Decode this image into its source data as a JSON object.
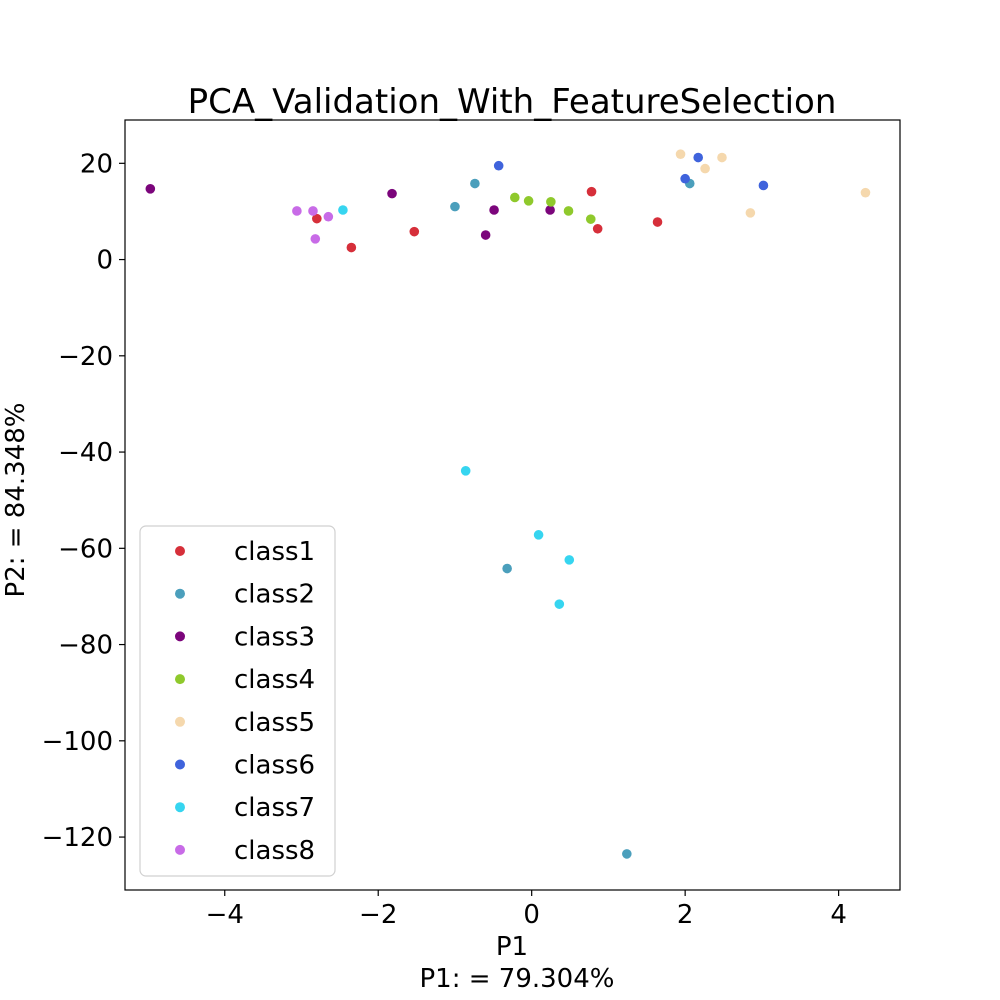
{
  "chart_data": {
    "type": "scatter",
    "title": "PCA_Validation_With_FeatureSelection",
    "xlabel": "P1",
    "xsublabel": "P1: = 79.304%",
    "ylabel": "P2: = 84.348%",
    "xlim": [
      -5.3,
      4.8
    ],
    "ylim": [
      -131,
      29
    ],
    "xticks": [
      -4,
      -2,
      0,
      2,
      4
    ],
    "xtick_labels": [
      "−4",
      "−2",
      "0",
      "2",
      "4"
    ],
    "yticks": [
      20,
      0,
      -20,
      -40,
      -60,
      -80,
      -100,
      -120
    ],
    "ytick_labels": [
      "20",
      "0",
      "−20",
      "−40",
      "−60",
      "−80",
      "−100",
      "−120"
    ],
    "grid": false,
    "legend_position": "lower-left",
    "series": [
      {
        "name": "class1",
        "color": "#d62f3a",
        "points": [
          [
            -2.8,
            8.5
          ],
          [
            -2.35,
            2.5
          ],
          [
            -1.53,
            5.8
          ],
          [
            0.78,
            14.1
          ],
          [
            0.86,
            6.4
          ],
          [
            1.64,
            7.8
          ]
        ]
      },
      {
        "name": "class2",
        "color": "#4b9fbc",
        "points": [
          [
            -1.0,
            11.0
          ],
          [
            -0.74,
            15.8
          ],
          [
            -0.32,
            -64.2
          ],
          [
            1.24,
            -123.5
          ],
          [
            2.06,
            15.8
          ]
        ]
      },
      {
        "name": "class3",
        "color": "#7b057b",
        "points": [
          [
            -4.97,
            14.7
          ],
          [
            -1.82,
            13.7
          ],
          [
            -0.6,
            5.1
          ],
          [
            -0.49,
            10.3
          ],
          [
            0.24,
            10.3
          ]
        ]
      },
      {
        "name": "class4",
        "color": "#8fc92c",
        "points": [
          [
            -0.22,
            12.9
          ],
          [
            -0.04,
            12.2
          ],
          [
            0.25,
            12.0
          ],
          [
            0.48,
            10.1
          ],
          [
            0.77,
            8.4
          ]
        ]
      },
      {
        "name": "class5",
        "color": "#f5d8ad",
        "points": [
          [
            1.94,
            21.9
          ],
          [
            2.26,
            18.9
          ],
          [
            2.48,
            21.2
          ],
          [
            2.85,
            9.7
          ],
          [
            4.35,
            13.9
          ]
        ]
      },
      {
        "name": "class6",
        "color": "#3f63dc",
        "points": [
          [
            -0.43,
            19.5
          ],
          [
            2.0,
            16.8
          ],
          [
            2.17,
            21.2
          ],
          [
            3.02,
            15.4
          ]
        ]
      },
      {
        "name": "class7",
        "color": "#36d5f0",
        "points": [
          [
            -2.46,
            10.3
          ],
          [
            -0.86,
            -43.9
          ],
          [
            0.09,
            -57.2
          ],
          [
            0.49,
            -62.4
          ],
          [
            0.36,
            -71.6
          ]
        ]
      },
      {
        "name": "class8",
        "color": "#c86be7",
        "points": [
          [
            -3.06,
            10.1
          ],
          [
            -2.85,
            10.1
          ],
          [
            -2.65,
            8.9
          ],
          [
            -2.82,
            4.3
          ]
        ]
      }
    ]
  }
}
